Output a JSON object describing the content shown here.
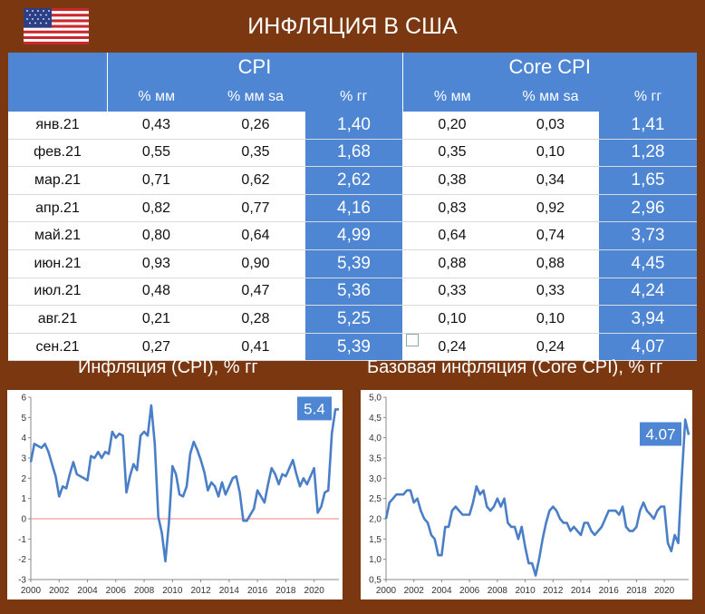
{
  "header": {
    "title": "ИНФЛЯЦИЯ В США",
    "flag_icon": "us-flag-icon"
  },
  "table": {
    "groups": [
      "CPI",
      "Core CPI"
    ],
    "subheaders": [
      "% мм",
      "% мм sa",
      "% гг",
      "% мм",
      "% мм sa",
      "% гг"
    ],
    "rows": [
      [
        "янв.21",
        "0,43",
        "0,26",
        "1,40",
        "0,20",
        "0,03",
        "1,41"
      ],
      [
        "фев.21",
        "0,55",
        "0,35",
        "1,68",
        "0,35",
        "0,10",
        "1,28"
      ],
      [
        "мар.21",
        "0,71",
        "0,62",
        "2,62",
        "0,38",
        "0,34",
        "1,65"
      ],
      [
        "апр.21",
        "0,82",
        "0,77",
        "4,16",
        "0,83",
        "0,92",
        "2,96"
      ],
      [
        "май.21",
        "0,80",
        "0,64",
        "4,99",
        "0,64",
        "0,74",
        "3,73"
      ],
      [
        "июн.21",
        "0,93",
        "0,90",
        "5,39",
        "0,88",
        "0,88",
        "4,45"
      ],
      [
        "июл.21",
        "0,48",
        "0,47",
        "5,36",
        "0,33",
        "0,33",
        "4,24"
      ],
      [
        "авг.21",
        "0,21",
        "0,28",
        "5,25",
        "0,10",
        "0,10",
        "3,94"
      ],
      [
        "сен.21",
        "0,27",
        "0,41",
        "5,39",
        "0,24",
        "0,24",
        "4,07"
      ]
    ]
  },
  "sections": {
    "left_title": "Инфляция (CPI), % гг",
    "right_title": "Базовая инфляция (Core CPI), % гг"
  },
  "colors": {
    "accent": "#4e86d4",
    "background": "#7a3710",
    "line": "#4a7fc8",
    "zero_line": "#f08080"
  },
  "chart_data": [
    {
      "type": "line",
      "title": "",
      "xlabel": "",
      "ylabel": "",
      "xlim": [
        2000,
        2021.75
      ],
      "ylim": [
        -3,
        6
      ],
      "xticks": [
        "2000",
        "2002",
        "2004",
        "2006",
        "2008",
        "2010",
        "2012",
        "2014",
        "2016",
        "2018",
        "2020"
      ],
      "yticks": [
        "-3",
        "-2",
        "-1",
        "0",
        "1",
        "2",
        "3",
        "4",
        "5",
        "6"
      ],
      "grid": false,
      "annotation": "5.4",
      "x": [
        2000,
        2000.25,
        2000.5,
        2000.75,
        2001,
        2001.25,
        2001.5,
        2001.75,
        2002,
        2002.25,
        2002.5,
        2002.75,
        2003,
        2003.25,
        2003.5,
        2003.75,
        2004,
        2004.25,
        2004.5,
        2004.75,
        2005,
        2005.25,
        2005.5,
        2005.75,
        2006,
        2006.25,
        2006.5,
        2006.75,
        2007,
        2007.25,
        2007.5,
        2007.75,
        2008,
        2008.25,
        2008.5,
        2008.75,
        2009,
        2009.25,
        2009.5,
        2009.75,
        2010,
        2010.25,
        2010.5,
        2010.75,
        2011,
        2011.25,
        2011.5,
        2011.75,
        2012,
        2012.25,
        2012.5,
        2012.75,
        2013,
        2013.25,
        2013.5,
        2013.75,
        2014,
        2014.25,
        2014.5,
        2014.75,
        2015,
        2015.25,
        2015.5,
        2015.75,
        2016,
        2016.25,
        2016.5,
        2016.75,
        2017,
        2017.25,
        2017.5,
        2017.75,
        2018,
        2018.25,
        2018.5,
        2018.75,
        2019,
        2019.25,
        2019.5,
        2019.75,
        2020,
        2020.25,
        2020.5,
        2020.75,
        2021,
        2021.25,
        2021.5,
        2021.75
      ],
      "values": [
        2.8,
        3.7,
        3.6,
        3.5,
        3.7,
        3.3,
        2.7,
        2.1,
        1.1,
        1.6,
        1.5,
        2.2,
        2.8,
        2.2,
        2.1,
        2.0,
        1.9,
        3.1,
        3.0,
        3.3,
        3.0,
        3.3,
        3.2,
        4.3,
        4.0,
        4.2,
        4.1,
        1.3,
        2.1,
        2.7,
        2.4,
        4.1,
        4.3,
        4.1,
        5.6,
        3.7,
        0.1,
        -0.7,
        -2.1,
        -0.2,
        2.6,
        2.2,
        1.2,
        1.1,
        1.6,
        3.2,
        3.8,
        3.4,
        2.9,
        2.3,
        1.4,
        1.8,
        1.6,
        1.1,
        1.8,
        1.2,
        1.6,
        2.0,
        2.1,
        1.3,
        -0.1,
        -0.1,
        0.2,
        0.5,
        1.4,
        1.1,
        0.8,
        1.7,
        2.5,
        2.2,
        1.7,
        2.2,
        2.1,
        2.5,
        2.9,
        2.2,
        1.6,
        2.0,
        1.7,
        2.1,
        2.5,
        0.3,
        0.6,
        1.3,
        1.4,
        4.2,
        5.4,
        5.4
      ]
    },
    {
      "type": "line",
      "title": "",
      "xlabel": "",
      "ylabel": "",
      "xlim": [
        2000,
        2021.75
      ],
      "ylim": [
        0.5,
        5.0
      ],
      "xticks": [
        "2000",
        "2002",
        "2004",
        "2006",
        "2008",
        "2010",
        "2012",
        "2014",
        "2016",
        "2018",
        "2020"
      ],
      "yticks": [
        "0,5",
        "1,0",
        "1,5",
        "2,0",
        "2,5",
        "3,0",
        "3,5",
        "4,0",
        "4,5",
        "5,0"
      ],
      "grid": false,
      "annotation": "4.07",
      "x": [
        2000,
        2000.25,
        2000.5,
        2000.75,
        2001,
        2001.25,
        2001.5,
        2001.75,
        2002,
        2002.25,
        2002.5,
        2002.75,
        2003,
        2003.25,
        2003.5,
        2003.75,
        2004,
        2004.25,
        2004.5,
        2004.75,
        2005,
        2005.25,
        2005.5,
        2005.75,
        2006,
        2006.25,
        2006.5,
        2006.75,
        2007,
        2007.25,
        2007.5,
        2007.75,
        2008,
        2008.25,
        2008.5,
        2008.75,
        2009,
        2009.25,
        2009.5,
        2009.75,
        2010,
        2010.25,
        2010.5,
        2010.75,
        2011,
        2011.25,
        2011.5,
        2011.75,
        2012,
        2012.25,
        2012.5,
        2012.75,
        2013,
        2013.25,
        2013.5,
        2013.75,
        2014,
        2014.25,
        2014.5,
        2014.75,
        2015,
        2015.25,
        2015.5,
        2015.75,
        2016,
        2016.25,
        2016.5,
        2016.75,
        2017,
        2017.25,
        2017.5,
        2017.75,
        2018,
        2018.25,
        2018.5,
        2018.75,
        2019,
        2019.25,
        2019.5,
        2019.75,
        2020,
        2020.25,
        2020.5,
        2020.75,
        2021,
        2021.25,
        2021.5,
        2021.75
      ],
      "values": [
        2.0,
        2.4,
        2.5,
        2.6,
        2.6,
        2.6,
        2.7,
        2.7,
        2.4,
        2.5,
        2.2,
        2.0,
        1.9,
        1.6,
        1.5,
        1.1,
        1.1,
        1.8,
        1.8,
        2.2,
        2.3,
        2.2,
        2.1,
        2.1,
        2.1,
        2.4,
        2.8,
        2.6,
        2.7,
        2.3,
        2.2,
        2.3,
        2.5,
        2.3,
        2.5,
        1.9,
        1.8,
        1.8,
        1.5,
        1.8,
        1.3,
        0.9,
        0.9,
        0.6,
        1.0,
        1.5,
        1.9,
        2.2,
        2.3,
        2.2,
        2.0,
        1.9,
        1.9,
        1.7,
        1.8,
        1.7,
        1.6,
        1.9,
        1.9,
        1.7,
        1.6,
        1.7,
        1.8,
        2.0,
        2.2,
        2.2,
        2.2,
        2.1,
        2.3,
        1.8,
        1.7,
        1.7,
        1.8,
        2.2,
        2.4,
        2.2,
        2.1,
        2.0,
        2.2,
        2.3,
        2.3,
        1.4,
        1.2,
        1.6,
        1.4,
        3.0,
        4.45,
        4.07
      ]
    }
  ]
}
